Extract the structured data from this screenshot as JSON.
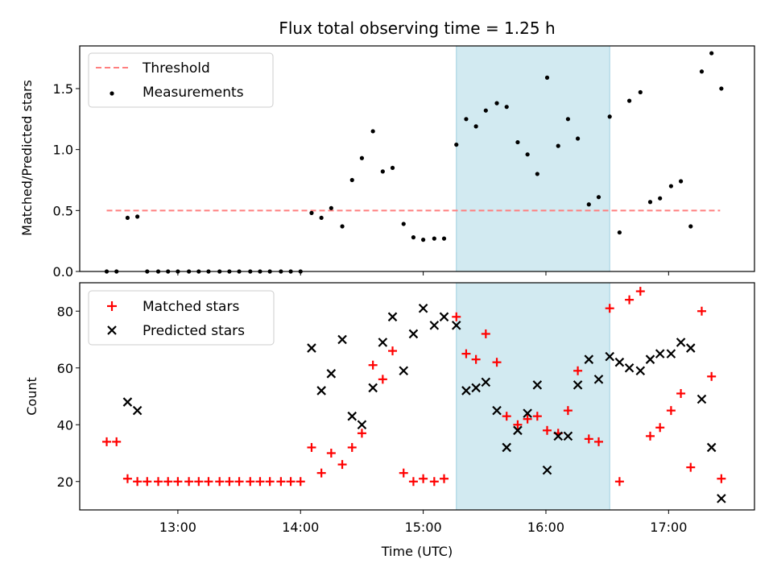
{
  "chart_data": [
    {
      "type": "scatter",
      "title": "Flux total observing time = 1.25 h",
      "ylabel": "Matched/Predicted stars",
      "xlabel": "",
      "xlim": [
        12.2,
        17.7
      ],
      "ylim": [
        0,
        1.85
      ],
      "yticks": [
        0.0,
        0.5,
        1.0,
        1.5
      ],
      "ytick_labels": [
        "0.0",
        "0.5",
        "1.0",
        "1.5"
      ],
      "highlight": {
        "x0": 15.27,
        "x1": 16.52,
        "color": "#add8e6"
      },
      "threshold": {
        "label": "Threshold",
        "value": 0.5,
        "x0": 12.42,
        "x1": 17.42,
        "color": "#ff7f7f"
      },
      "legend": [
        "Threshold",
        "Measurements"
      ],
      "series": [
        {
          "name": "Measurements",
          "color": "#000000",
          "x": [
            12.42,
            12.5,
            12.59,
            12.67,
            12.75,
            12.84,
            12.92,
            13.0,
            13.09,
            13.17,
            13.25,
            13.34,
            13.42,
            13.5,
            13.59,
            13.67,
            13.75,
            13.84,
            13.92,
            14.0,
            14.09,
            14.17,
            14.25,
            14.34,
            14.42,
            14.5,
            14.59,
            14.67,
            14.75,
            14.84,
            14.92,
            15.0,
            15.09,
            15.17,
            15.27,
            15.35,
            15.43,
            15.51,
            15.6,
            15.68,
            15.77,
            15.85,
            15.93,
            16.01,
            16.1,
            16.18,
            16.26,
            16.35,
            16.43,
            16.52,
            16.6,
            16.68,
            16.77,
            16.85,
            16.93,
            17.02,
            17.1,
            17.18,
            17.27,
            17.35,
            17.43
          ],
          "y": [
            0.0,
            0.0,
            0.44,
            0.45,
            0.0,
            0.0,
            0.0,
            0.0,
            0.0,
            0.0,
            0.0,
            0.0,
            0.0,
            0.0,
            0.0,
            0.0,
            0.0,
            0.0,
            0.0,
            0.0,
            0.48,
            0.44,
            0.52,
            0.37,
            0.75,
            0.93,
            1.15,
            0.82,
            0.85,
            0.39,
            0.28,
            0.26,
            0.27,
            0.27,
            1.04,
            1.25,
            1.19,
            1.32,
            1.38,
            1.35,
            1.06,
            0.96,
            0.8,
            1.59,
            1.03,
            1.25,
            1.09,
            0.55,
            0.61,
            1.27,
            0.32,
            1.4,
            1.47,
            0.57,
            0.6,
            0.7,
            0.74,
            0.37,
            1.64,
            1.79,
            1.5
          ]
        }
      ]
    },
    {
      "type": "scatter",
      "title": "",
      "ylabel": "Count",
      "xlabel": "Time (UTC)",
      "xlim": [
        12.2,
        17.7
      ],
      "ylim": [
        10,
        90
      ],
      "yticks": [
        20,
        40,
        60,
        80
      ],
      "ytick_labels": [
        "20",
        "40",
        "60",
        "80"
      ],
      "xticks": [
        13,
        14,
        15,
        16,
        17
      ],
      "xtick_labels": [
        "13:00",
        "14:00",
        "15:00",
        "16:00",
        "17:00"
      ],
      "highlight": {
        "x0": 15.27,
        "x1": 16.52,
        "color": "#add8e6"
      },
      "legend": [
        "Matched stars",
        "Predicted stars"
      ],
      "series": [
        {
          "name": "Matched stars",
          "marker": "plus",
          "color": "#ff0000",
          "x": [
            12.42,
            12.5,
            12.59,
            12.67,
            12.75,
            12.84,
            12.92,
            13.0,
            13.09,
            13.17,
            13.25,
            13.34,
            13.42,
            13.5,
            13.59,
            13.67,
            13.75,
            13.84,
            13.92,
            14.0,
            14.09,
            14.17,
            14.25,
            14.34,
            14.42,
            14.5,
            14.59,
            14.67,
            14.75,
            14.84,
            14.92,
            15.0,
            15.09,
            15.17,
            15.27,
            15.35,
            15.43,
            15.51,
            15.6,
            15.68,
            15.77,
            15.85,
            15.93,
            16.01,
            16.1,
            16.18,
            16.26,
            16.35,
            16.43,
            16.52,
            16.6,
            16.68,
            16.77,
            16.85,
            16.93,
            17.02,
            17.1,
            17.18,
            17.27,
            17.35,
            17.43
          ],
          "y": [
            34,
            34,
            21,
            20,
            20,
            20,
            20,
            20,
            20,
            20,
            20,
            20,
            20,
            20,
            20,
            20,
            20,
            20,
            20,
            20,
            32,
            23,
            30,
            26,
            32,
            37,
            61,
            56,
            66,
            23,
            20,
            21,
            20,
            21,
            78,
            65,
            63,
            72,
            62,
            43,
            40,
            42,
            43,
            38,
            37,
            45,
            59,
            35,
            34,
            81,
            20,
            84,
            87,
            36,
            39,
            45,
            51,
            25,
            80,
            57,
            21
          ]
        },
        {
          "name": "Predicted stars",
          "marker": "x",
          "color": "#000000",
          "x": [
            12.59,
            12.67,
            14.09,
            14.17,
            14.25,
            14.34,
            14.42,
            14.5,
            14.59,
            14.67,
            14.75,
            14.84,
            14.92,
            15.0,
            15.09,
            15.17,
            15.27,
            15.35,
            15.43,
            15.51,
            15.6,
            15.68,
            15.77,
            15.85,
            15.93,
            16.01,
            16.1,
            16.18,
            16.26,
            16.35,
            16.43,
            16.52,
            16.6,
            16.68,
            16.77,
            16.85,
            16.93,
            17.02,
            17.1,
            17.18,
            17.27,
            17.35,
            17.43
          ],
          "y": [
            48,
            45,
            67,
            52,
            58,
            70,
            43,
            40,
            53,
            69,
            78,
            59,
            72,
            81,
            75,
            78,
            75,
            52,
            53,
            55,
            45,
            32,
            38,
            44,
            54,
            24,
            36,
            36,
            54,
            63,
            56,
            64,
            62,
            60,
            59,
            63,
            65,
            65,
            69,
            67,
            49,
            32,
            14
          ]
        }
      ]
    }
  ]
}
